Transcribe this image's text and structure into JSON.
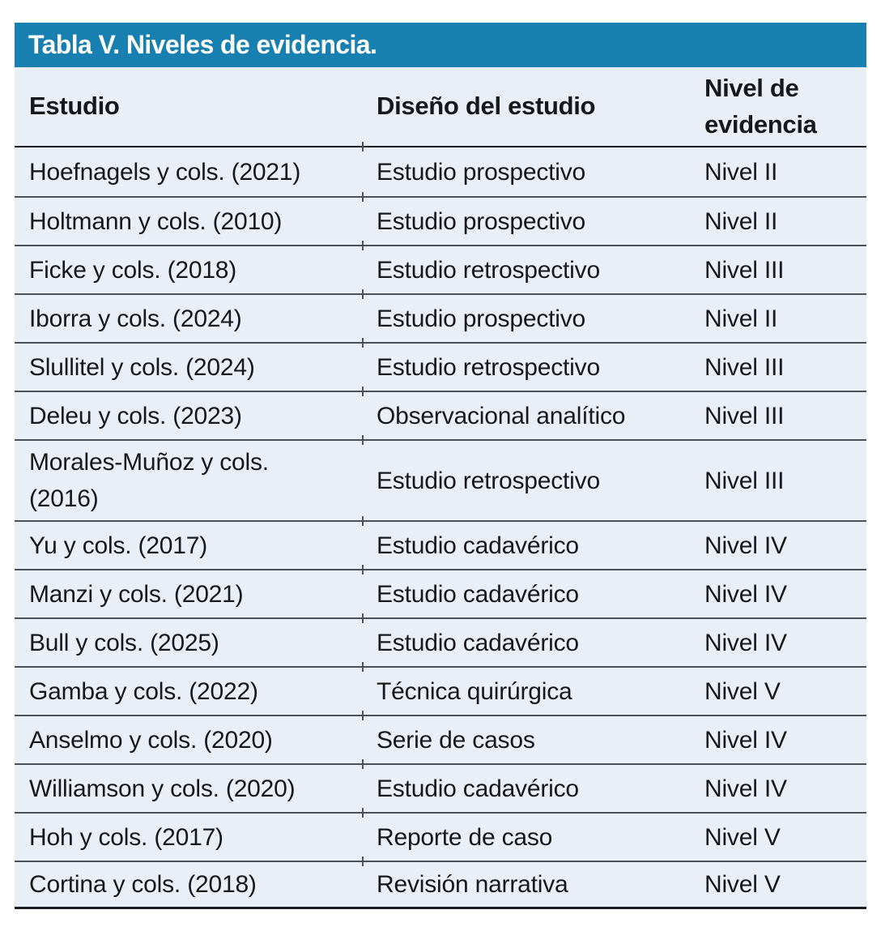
{
  "table": {
    "title": "Tabla V. Niveles de evidencia.",
    "columns": {
      "estudio": "Estudio",
      "diseno": "Diseño del estudio",
      "nivel": "Nivel de\nevidencia"
    },
    "rows": [
      {
        "estudio": "Hoefnagels y cols. (2021)",
        "diseno": "Estudio prospectivo",
        "nivel": "Nivel II"
      },
      {
        "estudio": "Holtmann y cols. (2010)",
        "diseno": "Estudio prospectivo",
        "nivel": "Nivel II"
      },
      {
        "estudio": "Ficke y cols. (2018)",
        "diseno": "Estudio retrospectivo",
        "nivel": "Nivel III"
      },
      {
        "estudio": "Iborra y cols. (2024)",
        "diseno": "Estudio prospectivo",
        "nivel": "Nivel II"
      },
      {
        "estudio": "Slullitel y cols. (2024)",
        "diseno": "Estudio retrospectivo",
        "nivel": "Nivel III"
      },
      {
        "estudio": "Deleu y cols. (2023)",
        "diseno": "Observacional analítico",
        "nivel": "Nivel III"
      },
      {
        "estudio": "Morales-Muñoz y cols.\n(2016)",
        "diseno": "Estudio retrospectivo",
        "nivel": "Nivel III"
      },
      {
        "estudio": "Yu y cols. (2017)",
        "diseno": "Estudio cadavérico",
        "nivel": "Nivel IV"
      },
      {
        "estudio": "Manzi y cols. (2021)",
        "diseno": "Estudio cadavérico",
        "nivel": "Nivel IV"
      },
      {
        "estudio": "Bull y cols. (2025)",
        "diseno": "Estudio cadavérico",
        "nivel": "Nivel IV"
      },
      {
        "estudio": "Gamba y cols. (2022)",
        "diseno": "Técnica quirúrgica",
        "nivel": "Nivel V"
      },
      {
        "estudio": "Anselmo y cols. (2020)",
        "diseno": "Serie de casos",
        "nivel": "Nivel IV"
      },
      {
        "estudio": "Williamson y cols. (2020)",
        "diseno": "Estudio cadavérico",
        "nivel": "Nivel IV"
      },
      {
        "estudio": "Hoh y cols. (2017)",
        "diseno": "Reporte de caso",
        "nivel": "Nivel V"
      },
      {
        "estudio": "Cortina y cols. (2018)",
        "diseno": "Revisión narrativa",
        "nivel": "Nivel V"
      }
    ],
    "colors": {
      "title_bar_bg": "#1780B0",
      "title_text": "#FFFFFF",
      "body_bg": "#EAEEF6",
      "text": "#17181C",
      "row_rule": "#4C5158",
      "strong_rule": "#1A1D22"
    }
  }
}
